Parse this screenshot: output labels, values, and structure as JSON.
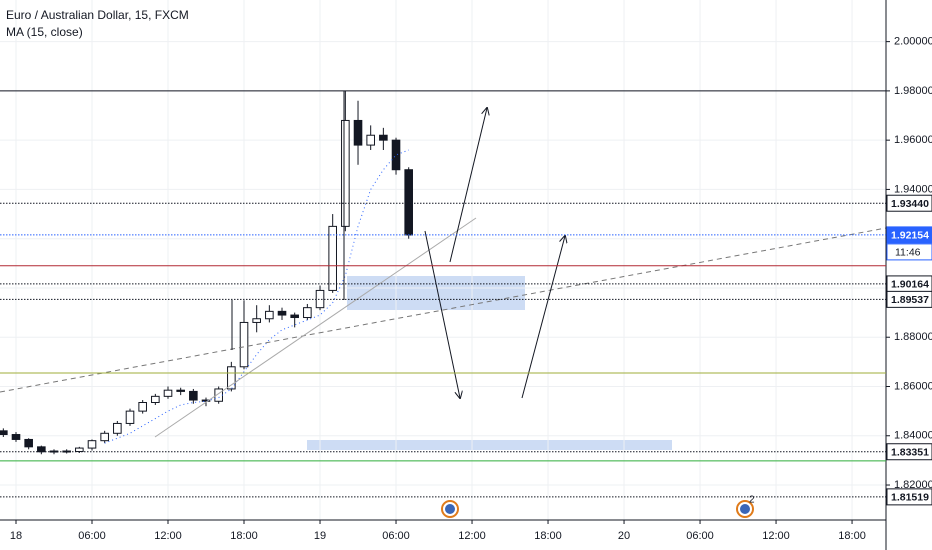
{
  "chart_data": {
    "type": "candlestick",
    "title": "Euro / Australian Dollar, 15, FXCM",
    "subtitle": "MA (15, close)",
    "x": [
      -1,
      0,
      1,
      2,
      3,
      4,
      5,
      6,
      7,
      8,
      9,
      10,
      11,
      12,
      13,
      14,
      15,
      16,
      17,
      18,
      19,
      20,
      21,
      22,
      23,
      24,
      25,
      26,
      27,
      28,
      29,
      30,
      31
    ],
    "open": [
      1.842,
      1.8405,
      1.8385,
      1.8355,
      1.8335,
      1.8338,
      1.8336,
      1.835,
      1.838,
      1.841,
      1.845,
      1.85,
      1.8535,
      1.856,
      1.8585,
      1.858,
      1.8545,
      1.854,
      1.859,
      1.868,
      1.886,
      1.8875,
      1.8905,
      1.889,
      1.888,
      1.892,
      1.899,
      1.925,
      1.968,
      1.958,
      1.962,
      1.96,
      1.948
    ],
    "high": [
      1.843,
      1.8415,
      1.839,
      1.836,
      1.8345,
      1.8345,
      1.8355,
      1.8385,
      1.842,
      1.846,
      1.851,
      1.8545,
      1.857,
      1.86,
      1.8595,
      1.859,
      1.8555,
      1.86,
      1.87,
      1.895,
      1.893,
      1.893,
      1.892,
      1.89,
      1.8935,
      1.901,
      1.93,
      1.98,
      1.976,
      1.966,
      1.965,
      1.961,
      1.949
    ],
    "low": [
      1.8395,
      1.8375,
      1.8345,
      1.8325,
      1.8325,
      1.8328,
      1.833,
      1.834,
      1.837,
      1.84,
      1.844,
      1.849,
      1.8525,
      1.855,
      1.8565,
      1.853,
      1.852,
      1.853,
      1.858,
      1.867,
      1.882,
      1.886,
      1.887,
      1.884,
      1.887,
      1.891,
      1.898,
      1.923,
      1.95,
      1.956,
      1.956,
      1.946,
      1.92
    ],
    "close": [
      1.8405,
      1.8385,
      1.8355,
      1.8335,
      1.8338,
      1.8336,
      1.835,
      1.838,
      1.841,
      1.845,
      1.85,
      1.8535,
      1.856,
      1.8585,
      1.858,
      1.8545,
      1.854,
      1.859,
      1.868,
      1.886,
      1.8875,
      1.8905,
      1.889,
      1.888,
      1.892,
      1.899,
      1.925,
      1.968,
      1.958,
      1.962,
      1.96,
      1.948,
      1.9215
    ],
    "up_color": "#ffffff",
    "down_color": "#131722",
    "ma": {
      "color": "#2962ff",
      "values": [
        null,
        null,
        null,
        null,
        null,
        null,
        null,
        null,
        1.837,
        1.839,
        1.841,
        1.844,
        1.847,
        1.85,
        1.8525,
        1.8535,
        1.854,
        1.8555,
        1.859,
        1.866,
        1.873,
        1.879,
        1.883,
        1.885,
        1.887,
        1.889,
        1.894,
        1.905,
        1.925,
        1.94,
        1.948,
        1.954,
        1.956
      ]
    },
    "xlim": [
      -1.263,
      68.68
    ],
    "ylim": [
      1.8058,
      2.0169
    ],
    "xticks": [
      {
        "value": 0,
        "label": "18"
      },
      {
        "value": 6,
        "label": "06:00"
      },
      {
        "value": 12,
        "label": "12:00"
      },
      {
        "value": 18,
        "label": "18:00"
      },
      {
        "value": 24,
        "label": "19"
      },
      {
        "value": 30,
        "label": "06:00"
      },
      {
        "value": 36,
        "label": "12:00"
      },
      {
        "value": 42,
        "label": "18:00"
      },
      {
        "value": 48,
        "label": "20"
      },
      {
        "value": 54,
        "label": "06:00"
      },
      {
        "value": 60,
        "label": "12:00"
      },
      {
        "value": 66,
        "label": "18:00"
      }
    ],
    "yticks": [
      {
        "value": 2.0,
        "label": "2.00000"
      },
      {
        "value": 1.98,
        "label": "1.98000"
      },
      {
        "value": 1.96,
        "label": "1.96000"
      },
      {
        "value": 1.94,
        "label": "1.94000"
      },
      {
        "value": 1.92,
        "label": "1.92000"
      },
      {
        "value": 1.9,
        "label": "1.90000"
      },
      {
        "value": 1.88,
        "label": "1.88000"
      },
      {
        "value": 1.86,
        "label": "1.86000"
      },
      {
        "value": 1.84,
        "label": "1.84000"
      },
      {
        "value": 1.82,
        "label": "1.82000"
      }
    ],
    "grid": true,
    "hlines": [
      {
        "value": 1.98,
        "color": "#131722",
        "dash": false
      },
      {
        "value": 1.9344,
        "label": "1.93440",
        "color": "#131722",
        "dash": true
      },
      {
        "value": 1.92154,
        "label": "1.92154",
        "color": "#2962ff",
        "dash": true
      },
      {
        "value": 1.909,
        "color": "#b22833",
        "dash": false
      },
      {
        "value": 1.90164,
        "label": "1.90164",
        "color": "#131722",
        "dash": true
      },
      {
        "value": 1.89537,
        "label": "1.89537",
        "color": "#131722",
        "dash": true
      },
      {
        "value": 1.8655,
        "color": "#9fae3a",
        "dash": false
      },
      {
        "value": 1.83351,
        "label": "1.83351",
        "color": "#131722",
        "dash": true
      },
      {
        "value": 1.8298,
        "color": "#2fae3a",
        "dash": false
      },
      {
        "value": 1.81519,
        "label": "1.81519",
        "color": "#131722",
        "dash": true
      }
    ],
    "countdown": "11:46",
    "event_badge": "2"
  }
}
